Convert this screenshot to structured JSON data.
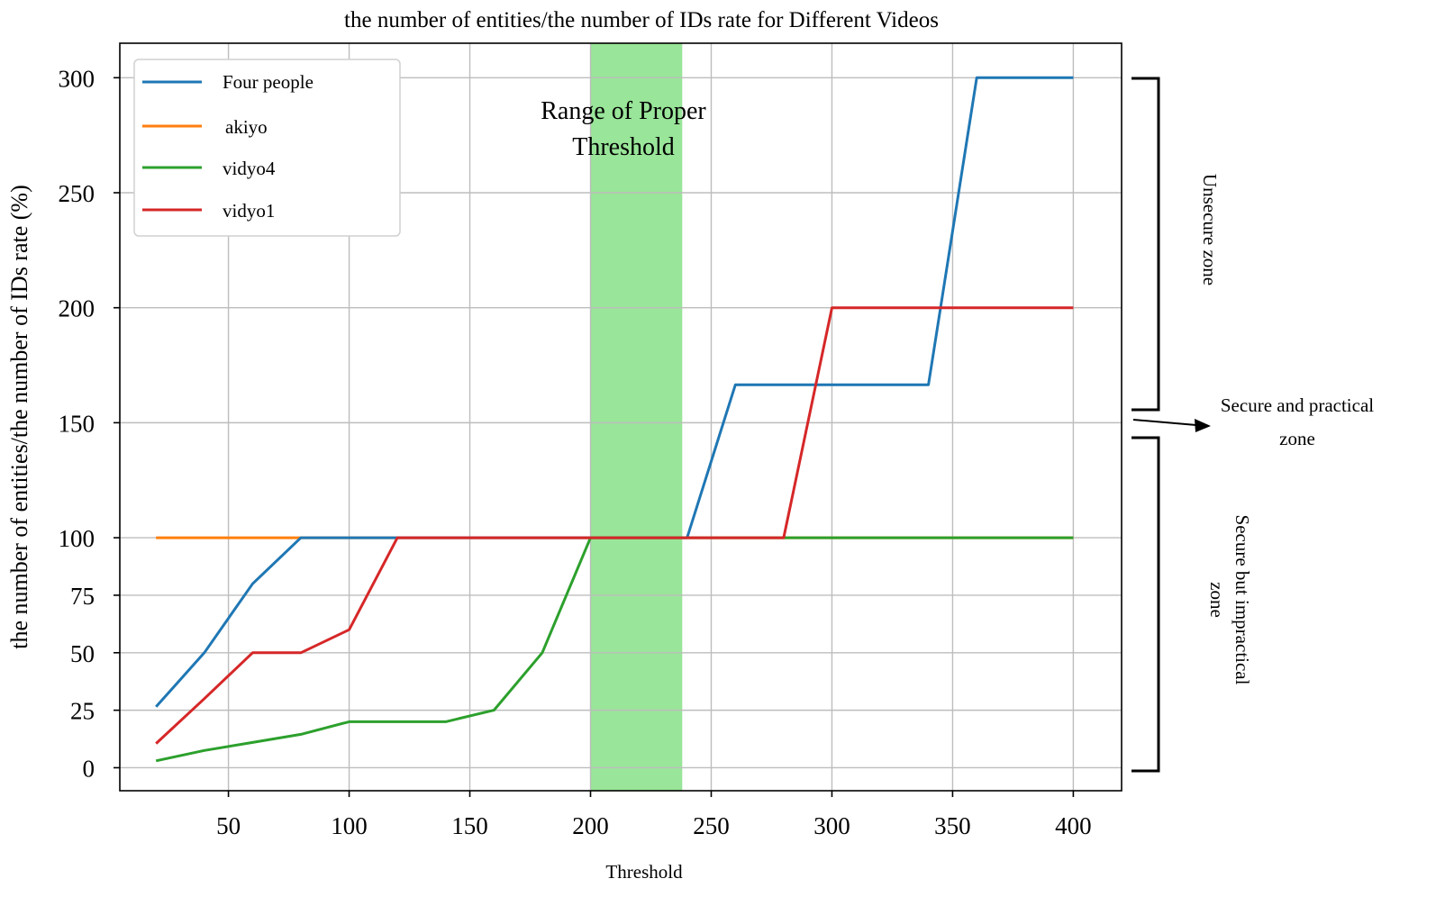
{
  "chart_data": {
    "type": "line",
    "title": "the number of entities/the number of IDs rate for Different Videos",
    "xlabel": "Threshold",
    "ylabel": "the number of entities/the number of IDs rate (%)",
    "xlim": [
      5,
      420
    ],
    "ylim": [
      -10,
      315
    ],
    "xticks": [
      50,
      100,
      150,
      200,
      250,
      300,
      350,
      400
    ],
    "yticks": [
      0,
      25,
      50,
      75,
      100,
      150,
      200,
      250,
      300
    ],
    "grid": true,
    "legend_position": "top-left",
    "series": [
      {
        "name": "Four people",
        "color": "#1f77b4",
        "x": [
          20,
          40,
          60,
          80,
          100,
          120,
          140,
          160,
          180,
          200,
          220,
          240,
          260,
          280,
          300,
          320,
          340,
          360,
          380,
          400
        ],
        "y": [
          26.5,
          50,
          80,
          100,
          100,
          100,
          100,
          100,
          100,
          100,
          100,
          100,
          166.5,
          166.5,
          166.5,
          166.5,
          166.5,
          300,
          300,
          300
        ]
      },
      {
        "name": "akiyo",
        "color": "#ff7f0e",
        "x": [
          20,
          40,
          60,
          80,
          100,
          120,
          140,
          160,
          180,
          200,
          220,
          240,
          260,
          280,
          300,
          320,
          340,
          360,
          380,
          400
        ],
        "y": [
          100,
          100,
          100,
          100,
          100,
          100,
          100,
          100,
          100,
          100,
          100,
          100,
          100,
          100,
          100,
          100,
          100,
          100,
          100,
          100
        ]
      },
      {
        "name": "vidyo4",
        "color": "#2ca02c",
        "x": [
          20,
          40,
          60,
          80,
          100,
          120,
          140,
          160,
          180,
          200,
          220,
          240,
          260,
          280,
          300,
          320,
          340,
          360,
          380,
          400
        ],
        "y": [
          3,
          7.5,
          11,
          14.5,
          20,
          20,
          20,
          25,
          50,
          100,
          100,
          100,
          100,
          100,
          100,
          100,
          100,
          100,
          100,
          100
        ]
      },
      {
        "name": "vidyo1",
        "color": "#d62728",
        "x": [
          20,
          40,
          60,
          80,
          100,
          120,
          140,
          160,
          180,
          200,
          220,
          240,
          260,
          280,
          300,
          320,
          340,
          360,
          380,
          400
        ],
        "y": [
          10.5,
          30,
          50,
          50,
          60,
          100,
          100,
          100,
          100,
          100,
          100,
          100,
          100,
          100,
          200,
          200,
          200,
          200,
          200,
          200
        ]
      }
    ],
    "highlight_band": {
      "x_range": [
        200,
        238
      ],
      "color": "#99e599",
      "label_lines": [
        "Range of Proper",
        "Threshold"
      ]
    },
    "zones": {
      "unsecure": "Unsecure zone",
      "secure_practical_lines": [
        "Secure and practical",
        "zone"
      ],
      "secure_impractical_lines": [
        "Secure but impractical",
        "zone"
      ]
    }
  }
}
